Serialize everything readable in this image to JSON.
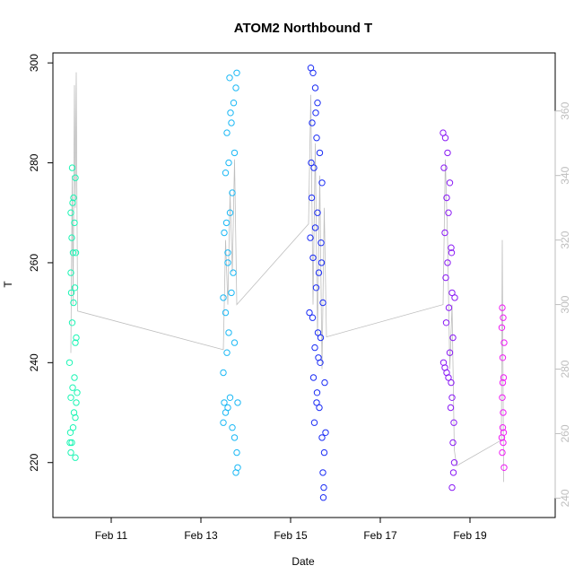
{
  "chart_data": {
    "type": "scatter",
    "title": "ATOM2 Northbound T",
    "xlabel": "Date",
    "ylabel": "T",
    "x_ticks": [
      "Feb 11",
      "Feb 13",
      "Feb 15",
      "Feb 17",
      "Feb 19"
    ],
    "x_tick_days": [
      11,
      13,
      15,
      17,
      19
    ],
    "xlim": [
      9.7,
      20.9
    ],
    "y_ticks": [
      220,
      240,
      260,
      280,
      300
    ],
    "ylim": [
      209,
      302
    ],
    "y2_ticks": [
      240,
      260,
      280,
      300,
      320,
      340,
      360
    ],
    "y2lim": [
      234,
      378
    ],
    "grid": false,
    "colors": {
      "left_axis": "#000000",
      "right_axis": "#bebebe",
      "line": "#bebebe"
    },
    "series": [
      {
        "date": "Feb 10",
        "color": "#1AF5B4",
        "day_start": 10.05,
        "day_end": 10.3,
        "points": [
          [
            10.1,
            222
          ],
          [
            10.12,
            224
          ],
          [
            10.09,
            226
          ],
          [
            10.15,
            227
          ],
          [
            10.2,
            229
          ],
          [
            10.17,
            230
          ],
          [
            10.22,
            232
          ],
          [
            10.1,
            233
          ],
          [
            10.14,
            235
          ],
          [
            10.18,
            237
          ],
          [
            10.07,
            240
          ],
          [
            10.2,
            244
          ],
          [
            10.13,
            248
          ],
          [
            10.16,
            252
          ],
          [
            10.11,
            254
          ],
          [
            10.19,
            255
          ],
          [
            10.1,
            258
          ],
          [
            10.15,
            262
          ],
          [
            10.21,
            262
          ],
          [
            10.12,
            265
          ],
          [
            10.18,
            268
          ],
          [
            10.1,
            270
          ],
          [
            10.14,
            272
          ],
          [
            10.16,
            273
          ],
          [
            10.2,
            277
          ],
          [
            10.13,
            279
          ],
          [
            10.24,
            234
          ],
          [
            10.22,
            245
          ],
          [
            10.08,
            224
          ],
          [
            10.2,
            221
          ]
        ]
      },
      {
        "date": "Feb 13",
        "color": "#1AB8F5",
        "day_start": 13.45,
        "day_end": 13.85,
        "points": [
          [
            13.5,
            228
          ],
          [
            13.55,
            230
          ],
          [
            13.6,
            231
          ],
          [
            13.52,
            232
          ],
          [
            13.65,
            233
          ],
          [
            13.7,
            227
          ],
          [
            13.75,
            225
          ],
          [
            13.8,
            222
          ],
          [
            13.82,
            219
          ],
          [
            13.78,
            218
          ],
          [
            13.5,
            238
          ],
          [
            13.58,
            242
          ],
          [
            13.62,
            246
          ],
          [
            13.55,
            250
          ],
          [
            13.68,
            254
          ],
          [
            13.72,
            258
          ],
          [
            13.6,
            262
          ],
          [
            13.52,
            266
          ],
          [
            13.65,
            270
          ],
          [
            13.7,
            274
          ],
          [
            13.55,
            278
          ],
          [
            13.62,
            280
          ],
          [
            13.75,
            282
          ],
          [
            13.58,
            286
          ],
          [
            13.68,
            288
          ],
          [
            13.73,
            292
          ],
          [
            13.64,
            297
          ],
          [
            13.8,
            298
          ],
          [
            13.78,
            295
          ],
          [
            13.6,
            260
          ],
          [
            13.75,
            244
          ],
          [
            13.82,
            232
          ],
          [
            13.5,
            253
          ],
          [
            13.57,
            268
          ],
          [
            13.66,
            290
          ]
        ]
      },
      {
        "date": "Feb 15",
        "color": "#1A2CF5",
        "day_start": 15.35,
        "day_end": 15.85,
        "points": [
          [
            15.45,
            299
          ],
          [
            15.5,
            298
          ],
          [
            15.55,
            295
          ],
          [
            15.6,
            292
          ],
          [
            15.48,
            288
          ],
          [
            15.58,
            285
          ],
          [
            15.65,
            282
          ],
          [
            15.52,
            279
          ],
          [
            15.7,
            276
          ],
          [
            15.47,
            273
          ],
          [
            15.6,
            270
          ],
          [
            15.55,
            267
          ],
          [
            15.68,
            264
          ],
          [
            15.5,
            261
          ],
          [
            15.63,
            258
          ],
          [
            15.57,
            255
          ],
          [
            15.72,
            252
          ],
          [
            15.49,
            249
          ],
          [
            15.61,
            246
          ],
          [
            15.54,
            243
          ],
          [
            15.66,
            240
          ],
          [
            15.51,
            237
          ],
          [
            15.59,
            234
          ],
          [
            15.64,
            231
          ],
          [
            15.53,
            228
          ],
          [
            15.7,
            225
          ],
          [
            15.75,
            222
          ],
          [
            15.72,
            218
          ],
          [
            15.74,
            215
          ],
          [
            15.73,
            213
          ],
          [
            15.42,
            250
          ],
          [
            15.44,
            265
          ],
          [
            15.46,
            280
          ],
          [
            15.62,
            241
          ],
          [
            15.58,
            232
          ],
          [
            15.69,
            260
          ],
          [
            15.76,
            236
          ],
          [
            15.67,
            245
          ],
          [
            15.56,
            290
          ],
          [
            15.78,
            226
          ]
        ]
      },
      {
        "date": "Feb 18",
        "color": "#8A1AF5",
        "day_start": 18.35,
        "day_end": 18.7,
        "points": [
          [
            18.4,
            286
          ],
          [
            18.45,
            285
          ],
          [
            18.5,
            282
          ],
          [
            18.42,
            279
          ],
          [
            18.55,
            276
          ],
          [
            18.48,
            273
          ],
          [
            18.52,
            270
          ],
          [
            18.44,
            266
          ],
          [
            18.58,
            263
          ],
          [
            18.5,
            260
          ],
          [
            18.46,
            257
          ],
          [
            18.6,
            254
          ],
          [
            18.53,
            251
          ],
          [
            18.47,
            248
          ],
          [
            18.62,
            245
          ],
          [
            18.55,
            242
          ],
          [
            18.41,
            240
          ],
          [
            18.44,
            239
          ],
          [
            18.48,
            238
          ],
          [
            18.52,
            237
          ],
          [
            18.58,
            236
          ],
          [
            18.6,
            233
          ],
          [
            18.64,
            228
          ],
          [
            18.62,
            224
          ],
          [
            18.65,
            220
          ],
          [
            18.63,
            218
          ],
          [
            18.6,
            215
          ],
          [
            18.57,
            231
          ],
          [
            18.66,
            253
          ],
          [
            18.59,
            262
          ]
        ]
      },
      {
        "date": "Feb 19",
        "color": "#EE1AF5",
        "day_start": 19.7,
        "day_end": 19.78,
        "points": [
          [
            19.72,
            251
          ],
          [
            19.74,
            249
          ],
          [
            19.71,
            247
          ],
          [
            19.76,
            244
          ],
          [
            19.73,
            241
          ],
          [
            19.75,
            237
          ],
          [
            19.72,
            233
          ],
          [
            19.74,
            230
          ],
          [
            19.73,
            227
          ],
          [
            19.75,
            226
          ],
          [
            19.71,
            225
          ],
          [
            19.74,
            224
          ],
          [
            19.72,
            222
          ],
          [
            19.76,
            219
          ],
          [
            19.73,
            236
          ]
        ]
      }
    ],
    "line_series": {
      "name": "",
      "axis": "right",
      "points": [
        [
          10.1,
          285
        ],
        [
          10.13,
          340
        ],
        [
          10.15,
          300
        ],
        [
          10.18,
          368
        ],
        [
          10.2,
          330
        ],
        [
          10.22,
          372
        ],
        [
          10.25,
          298
        ],
        [
          13.5,
          286
        ],
        [
          13.55,
          320
        ],
        [
          13.6,
          300
        ],
        [
          13.65,
          335
        ],
        [
          13.7,
          310
        ],
        [
          13.75,
          345
        ],
        [
          13.8,
          300
        ],
        [
          15.4,
          325
        ],
        [
          15.45,
          365
        ],
        [
          15.5,
          300
        ],
        [
          15.55,
          350
        ],
        [
          15.6,
          290
        ],
        [
          15.65,
          340
        ],
        [
          15.7,
          280
        ],
        [
          15.75,
          330
        ],
        [
          15.8,
          290
        ],
        [
          18.4,
          300
        ],
        [
          18.45,
          345
        ],
        [
          18.5,
          320
        ],
        [
          18.55,
          280
        ],
        [
          18.6,
          300
        ],
        [
          18.65,
          255
        ],
        [
          18.7,
          250
        ],
        [
          19.7,
          258
        ],
        [
          19.72,
          320
        ],
        [
          19.75,
          245
        ]
      ]
    }
  }
}
